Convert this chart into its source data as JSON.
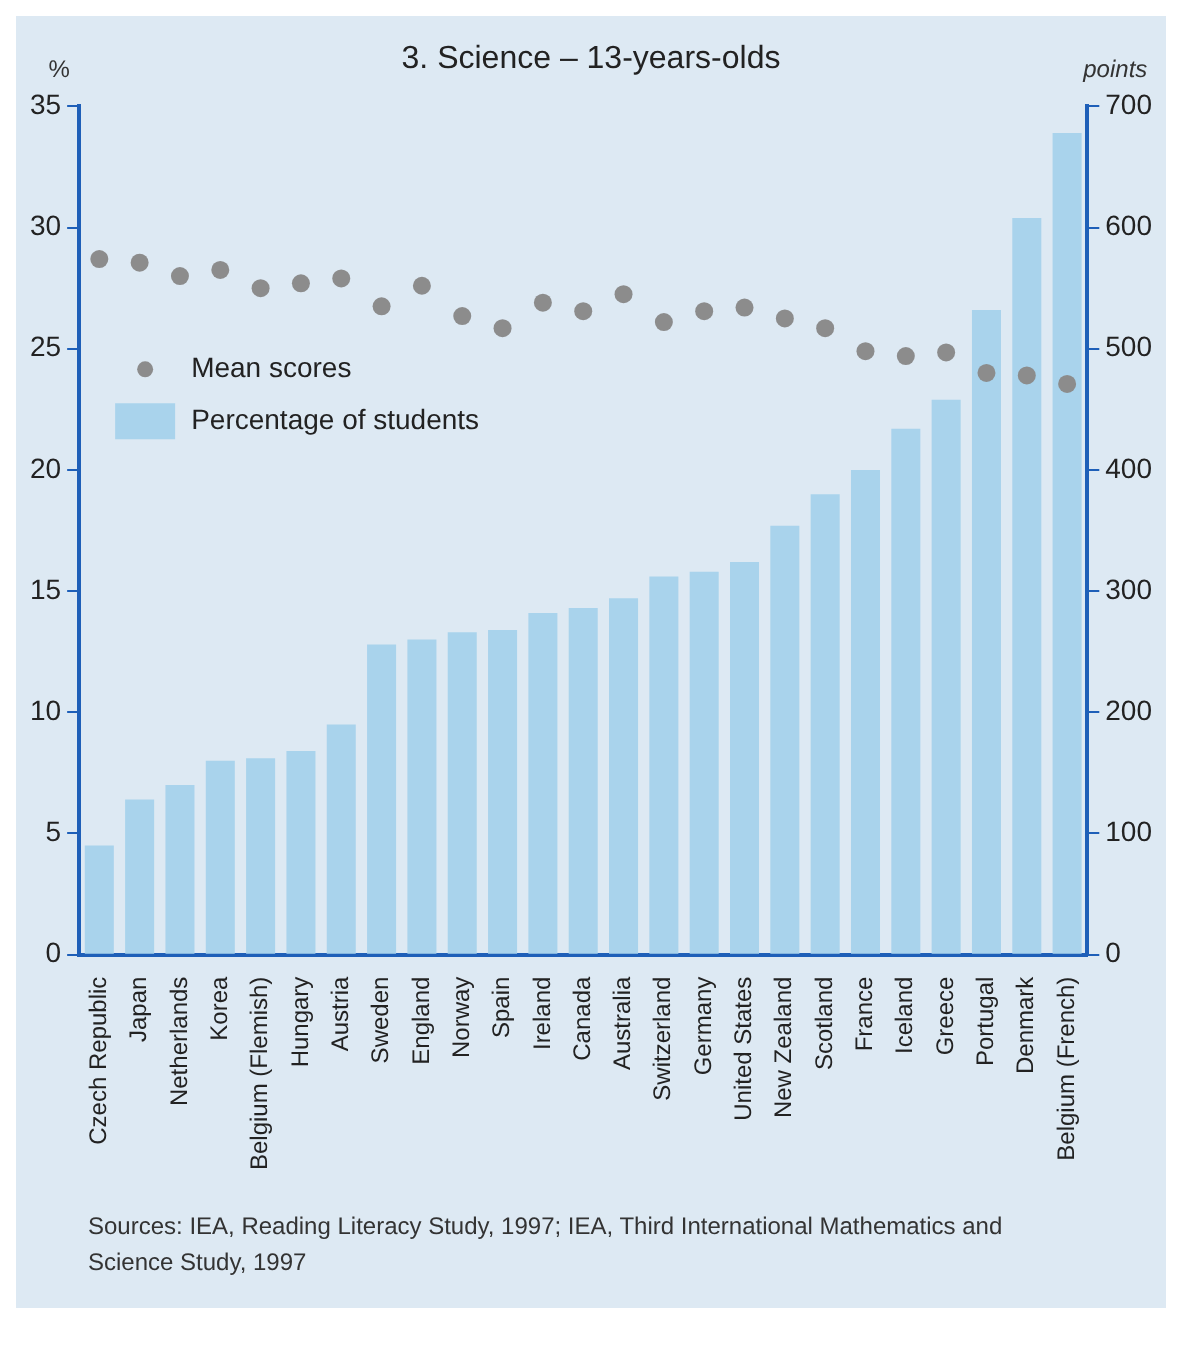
{
  "chart_data": {
    "type": "bar",
    "title": "3. Science – 13-years-olds",
    "ylabel": "%",
    "y2label": "points",
    "categories": [
      "Czech Republic",
      "Japan",
      "Netherlands",
      "Korea",
      "Belgium (Flemish)",
      "Hungary",
      "Austria",
      "Sweden",
      "England",
      "Norway",
      "Spain",
      "Ireland",
      "Canada",
      "Australia",
      "Switzerland",
      "Germany",
      "United States",
      "New Zealand",
      "Scotland",
      "France",
      "Iceland",
      "Greece",
      "Portugal",
      "Denmark",
      "Belgium (French)"
    ],
    "series": [
      {
        "name": "Mean scores",
        "type": "scatter",
        "axis": "y2",
        "color": "#8c8c8c",
        "values": [
          574,
          571,
          560,
          565,
          550,
          554,
          558,
          535,
          552,
          527,
          517,
          538,
          531,
          545,
          522,
          531,
          534,
          525,
          517,
          498,
          494,
          497,
          480,
          478,
          471
        ]
      },
      {
        "name": "Percentage of students",
        "color": "#a9d3ec",
        "values": [
          4.5,
          6.4,
          7.0,
          8.0,
          8.1,
          8.4,
          9.5,
          12.8,
          13.0,
          13.3,
          13.4,
          14.1,
          14.3,
          14.7,
          15.6,
          15.8,
          16.2,
          17.7,
          19.0,
          20.0,
          21.7,
          22.9,
          26.6,
          30.4,
          33.9
        ]
      }
    ],
    "ylim": [
      0,
      35
    ],
    "yticks": [
      0,
      5,
      10,
      15,
      20,
      25,
      30,
      35
    ],
    "y2lim": [
      0,
      700
    ],
    "y2ticks": [
      0,
      100,
      200,
      300,
      400,
      500,
      600,
      700
    ],
    "grid": false,
    "legend": "top left",
    "marker": "circle",
    "annotations": [
      "Sources: IEA, Reading Literacy Study, 1997; IEA, Third International Mathematics and Science Study, 1997"
    ]
  }
}
